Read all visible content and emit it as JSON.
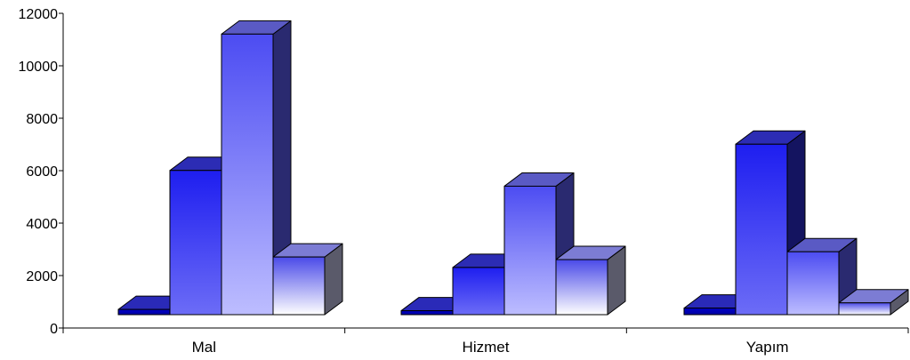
{
  "chart_data": {
    "type": "bar",
    "style": "3d-clustered-column",
    "categories": [
      "Mal",
      "Hizmet",
      "Yapım"
    ],
    "series": [
      {
        "values": [
          200,
          150,
          250
        ]
      },
      {
        "values": [
          5500,
          1800,
          6500
        ]
      },
      {
        "values": [
          10700,
          4900,
          2400
        ]
      },
      {
        "values": [
          2200,
          2100,
          450
        ]
      }
    ],
    "y_ticks": [
      "0",
      "2000",
      "4000",
      "6000",
      "8000",
      "10000",
      "12000"
    ],
    "ylim": [
      0,
      12000
    ],
    "title": "",
    "xlabel": "",
    "ylabel": "",
    "grid": false,
    "legend": false,
    "colors": {
      "series_0": {
        "front_top": "#0000c8",
        "front_bottom": "#0000a0",
        "top": "#2a2ab8",
        "side": "#00006a"
      },
      "series_1": {
        "front_top": "#1e1ef0",
        "front_bottom": "#6c6cf6",
        "top": "#2c2cb4",
        "side": "#141460"
      },
      "series_2": {
        "front_top": "#4c4cf2",
        "front_bottom": "#bdbdff",
        "top": "#5a5ac4",
        "side": "#2a2a70"
      },
      "series_3": {
        "front_top": "#4a4ae8",
        "front_bottom": "#ffffff",
        "top": "#7c7cd4",
        "side": "#5a5a6a"
      }
    }
  }
}
